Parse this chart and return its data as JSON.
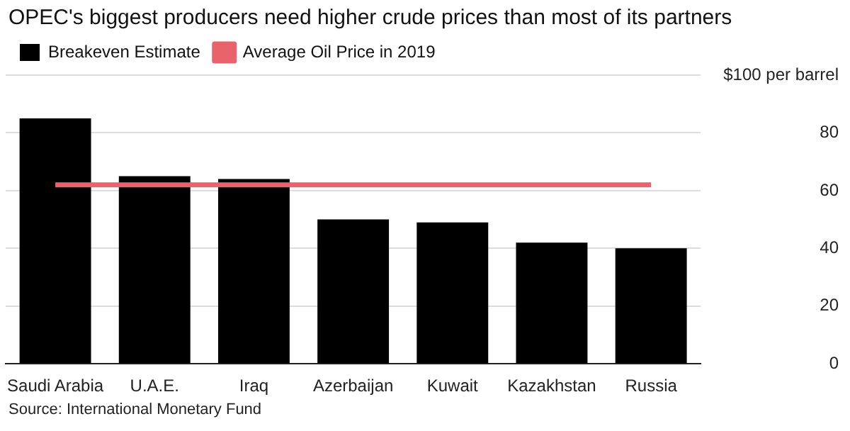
{
  "chart_data": {
    "type": "bar",
    "title": "OPEC's biggest producers need higher crude prices than most of its partners",
    "categories": [
      "Saudi Arabia",
      "U.A.E.",
      "Iraq",
      "Azerbaijan",
      "Kuwait",
      "Kazakhstan",
      "Russia"
    ],
    "series": [
      {
        "name": "Breakeven Estimate",
        "color": "#000000",
        "values": [
          85,
          65,
          64,
          50,
          49,
          42,
          40
        ]
      },
      {
        "name": "Average Oil Price in 2019",
        "type": "line",
        "color": "#e8636b",
        "values": [
          62,
          62,
          62,
          62,
          62,
          62,
          62
        ]
      }
    ],
    "ylim": [
      0,
      100
    ],
    "yticks": [
      0,
      20,
      40,
      60,
      80,
      {
        "value": 100,
        "label": "$100 per barrel"
      }
    ],
    "grid": "y",
    "legend": "top left",
    "marker": "none",
    "annotations": [
      "Source: International Monetary Fund"
    ]
  }
}
